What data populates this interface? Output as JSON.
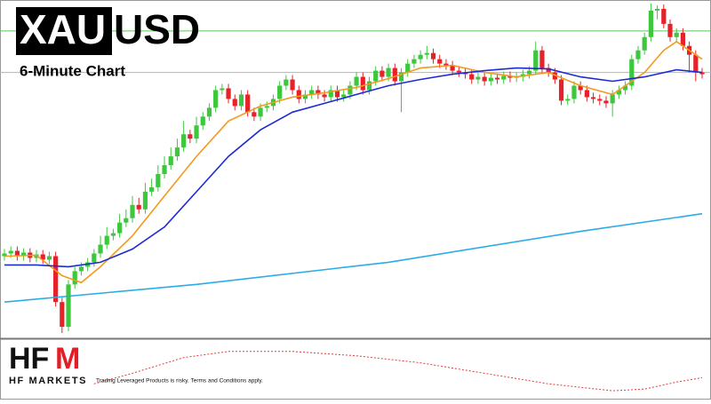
{
  "chart_data": [
    {
      "type": "candlestick",
      "title_left": "XAU",
      "title_right": "USD",
      "subtitle": "6-Minute Chart",
      "ylim": [
        0,
        380
      ],
      "up_color": "#3cc83c",
      "down_color": "#e62129",
      "open": [
        92,
        95,
        98,
        92,
        96,
        90,
        94,
        88,
        92,
        40,
        12,
        60,
        75,
        80,
        85,
        95,
        105,
        115,
        118,
        130,
        135,
        150,
        145,
        165,
        170,
        185,
        195,
        205,
        215,
        230,
        225,
        240,
        250,
        260,
        280,
        282,
        270,
        262,
        275,
        255,
        250,
        260,
        262,
        270,
        285,
        292,
        280,
        270,
        275,
        280,
        275,
        272,
        280,
        272,
        275,
        285,
        295,
        280,
        290,
        302,
        295,
        305,
        290,
        300,
        310,
        315,
        320,
        322,
        315,
        310,
        308,
        302,
        300,
        298,
        292,
        295,
        290,
        294,
        292,
        296,
        294,
        295,
        298,
        302,
        325,
        305,
        300,
        292,
        268,
        270,
        285,
        280,
        272,
        270,
        268,
        265,
        275,
        280,
        285,
        315,
        325,
        340,
        370,
        372,
        355,
        340,
        345,
        330,
        320,
        300
      ],
      "high": [
        100,
        103,
        103,
        101,
        101,
        99,
        99,
        97,
        97,
        45,
        65,
        80,
        85,
        90,
        100,
        115,
        125,
        123,
        140,
        145,
        160,
        158,
        175,
        180,
        195,
        205,
        215,
        225,
        245,
        235,
        250,
        255,
        265,
        285,
        287,
        287,
        275,
        280,
        280,
        260,
        265,
        267,
        275,
        290,
        297,
        297,
        285,
        280,
        285,
        285,
        280,
        285,
        285,
        280,
        290,
        300,
        300,
        295,
        307,
        307,
        310,
        310,
        305,
        315,
        320,
        325,
        330,
        327,
        320,
        315,
        313,
        307,
        305,
        303,
        300,
        300,
        299,
        299,
        301,
        301,
        300,
        303,
        307,
        335,
        330,
        310,
        305,
        297,
        275,
        290,
        290,
        285,
        277,
        275,
        273,
        280,
        285,
        290,
        320,
        330,
        345,
        378,
        376,
        377,
        360,
        350,
        350,
        335,
        325,
        305
      ],
      "low": [
        87,
        90,
        87,
        87,
        85,
        85,
        83,
        83,
        35,
        5,
        7,
        55,
        70,
        75,
        80,
        90,
        100,
        110,
        113,
        125,
        130,
        140,
        140,
        160,
        165,
        180,
        190,
        200,
        210,
        220,
        220,
        235,
        245,
        255,
        275,
        265,
        257,
        257,
        250,
        245,
        245,
        255,
        257,
        265,
        280,
        275,
        265,
        265,
        270,
        270,
        267,
        267,
        267,
        267,
        270,
        280,
        275,
        275,
        285,
        290,
        290,
        285,
        255,
        295,
        305,
        310,
        315,
        310,
        305,
        303,
        297,
        295,
        293,
        287,
        287,
        285,
        285,
        287,
        287,
        289,
        289,
        290,
        293,
        297,
        300,
        295,
        287,
        263,
        263,
        265,
        275,
        267,
        265,
        263,
        260,
        250,
        270,
        275,
        280,
        310,
        320,
        335,
        360,
        350,
        335,
        335,
        325,
        300,
        290,
        293
      ],
      "close": [
        95,
        98,
        92,
        96,
        90,
        94,
        88,
        92,
        40,
        12,
        60,
        75,
        80,
        85,
        95,
        105,
        115,
        118,
        130,
        135,
        150,
        145,
        165,
        170,
        185,
        195,
        205,
        215,
        230,
        225,
        240,
        250,
        260,
        280,
        282,
        270,
        262,
        275,
        255,
        250,
        260,
        262,
        270,
        285,
        292,
        280,
        270,
        275,
        280,
        275,
        272,
        280,
        272,
        275,
        285,
        295,
        280,
        290,
        302,
        295,
        305,
        290,
        300,
        310,
        315,
        320,
        322,
        315,
        310,
        308,
        302,
        300,
        298,
        292,
        295,
        290,
        294,
        292,
        296,
        294,
        295,
        298,
        302,
        325,
        305,
        300,
        292,
        268,
        270,
        285,
        280,
        272,
        270,
        268,
        265,
        275,
        280,
        285,
        315,
        325,
        340,
        370,
        372,
        355,
        340,
        345,
        330,
        320,
        300,
        298
      ],
      "levels": [
        {
          "value": 347,
          "color": "#5cc85c"
        },
        {
          "value": 300,
          "color": "#b4b4b4"
        }
      ],
      "series": [
        {
          "color": "#f39a1e",
          "x": [
            0,
            5,
            9,
            12,
            15,
            20,
            25,
            30,
            35,
            40,
            45,
            50,
            55,
            60,
            65,
            70,
            75,
            80,
            85,
            90,
            95,
            100,
            103,
            105,
            109
          ],
          "values": [
            92,
            93,
            70,
            62,
            80,
            115,
            160,
            205,
            245,
            262,
            272,
            277,
            283,
            293,
            305,
            308,
            300,
            295,
            300,
            285,
            275,
            300,
            325,
            335,
            315
          ]
        },
        {
          "color": "#1c2bd4",
          "x": [
            0,
            5,
            10,
            15,
            20,
            25,
            30,
            35,
            40,
            45,
            50,
            55,
            60,
            65,
            70,
            75,
            80,
            85,
            90,
            95,
            100,
            105,
            109
          ],
          "values": [
            82,
            82,
            80,
            85,
            100,
            125,
            165,
            205,
            235,
            255,
            265,
            275,
            285,
            292,
            298,
            302,
            305,
            304,
            295,
            290,
            295,
            303,
            300
          ]
        },
        {
          "color": "#2aace8",
          "x": [
            0,
            30,
            60,
            90,
            109
          ],
          "values": [
            40,
            60,
            85,
            120,
            140
          ]
        }
      ]
    },
    {
      "type": "line",
      "ylim": [
        0,
        67
      ],
      "series": [
        {
          "color": "#e23b3b",
          "x": [
            14,
            20,
            28,
            35,
            45,
            55,
            65,
            75,
            85,
            95,
            100,
            105,
            109
          ],
          "values": [
            18,
            30,
            48,
            55,
            55,
            50,
            42,
            30,
            18,
            10,
            12,
            20,
            25
          ]
        }
      ]
    }
  ],
  "footer": {
    "logo_left": "HF",
    "logo_right": "M",
    "brand": "HF MARKETS",
    "disclaimer": "Trading Leveraged Products is risky. Terms and Conditions apply."
  }
}
